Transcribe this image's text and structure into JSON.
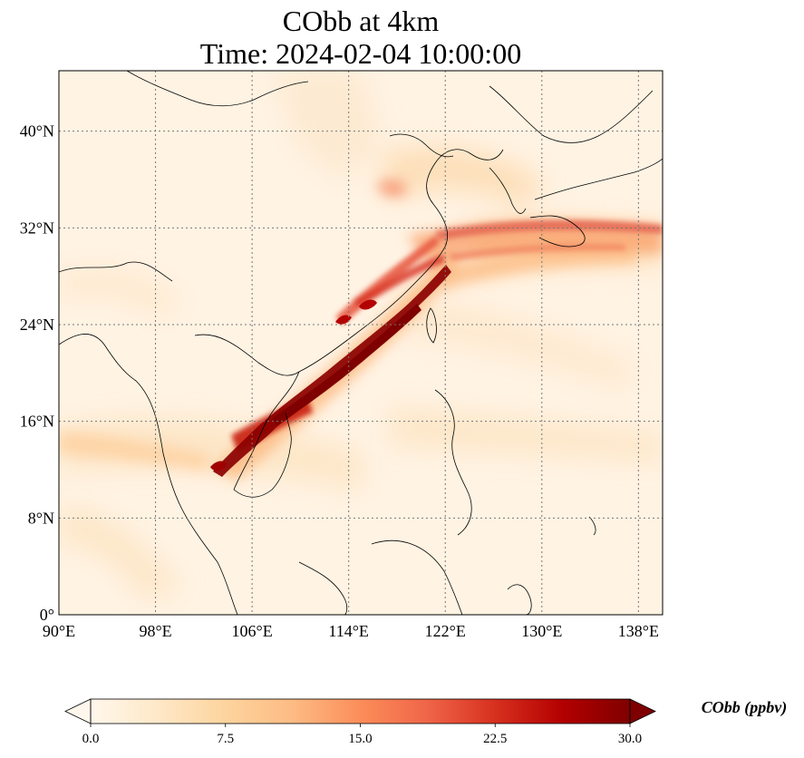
{
  "title": {
    "line1": "CObb at 4km",
    "line2": "Time: 2024-02-04 10:00:00"
  },
  "map": {
    "extent": {
      "lon_min": 90,
      "lon_max": 140,
      "lat_min": 0,
      "lat_max": 45
    },
    "lon_ticks": [
      {
        "value": 90,
        "label": "90°E"
      },
      {
        "value": 98,
        "label": "98°E"
      },
      {
        "value": 106,
        "label": "106°E"
      },
      {
        "value": 114,
        "label": "114°E"
      },
      {
        "value": 122,
        "label": "122°E"
      },
      {
        "value": 130,
        "label": "130°E"
      },
      {
        "value": 138,
        "label": "138°E"
      }
    ],
    "lat_ticks": [
      {
        "value": 0,
        "label": "0°"
      },
      {
        "value": 8,
        "label": "8°N"
      },
      {
        "value": 16,
        "label": "16°N"
      },
      {
        "value": 24,
        "label": "24°N"
      },
      {
        "value": 32,
        "label": "32°N"
      },
      {
        "value": 40,
        "label": "40°N"
      }
    ],
    "gridlines": true,
    "field_colormap": "OrRd"
  },
  "colorbar": {
    "label": "CObb (ppbv)",
    "min": 0.0,
    "max": 30.0,
    "extend": "both",
    "ticks": [
      "0.0",
      "7.5",
      "15.0",
      "22.5",
      "30.0"
    ],
    "colors": [
      "#fff7ec",
      "#fee8c8",
      "#fdd49e",
      "#fdbb84",
      "#fc8d59",
      "#ef6548",
      "#d7301f",
      "#b30000",
      "#7f0000"
    ]
  }
}
